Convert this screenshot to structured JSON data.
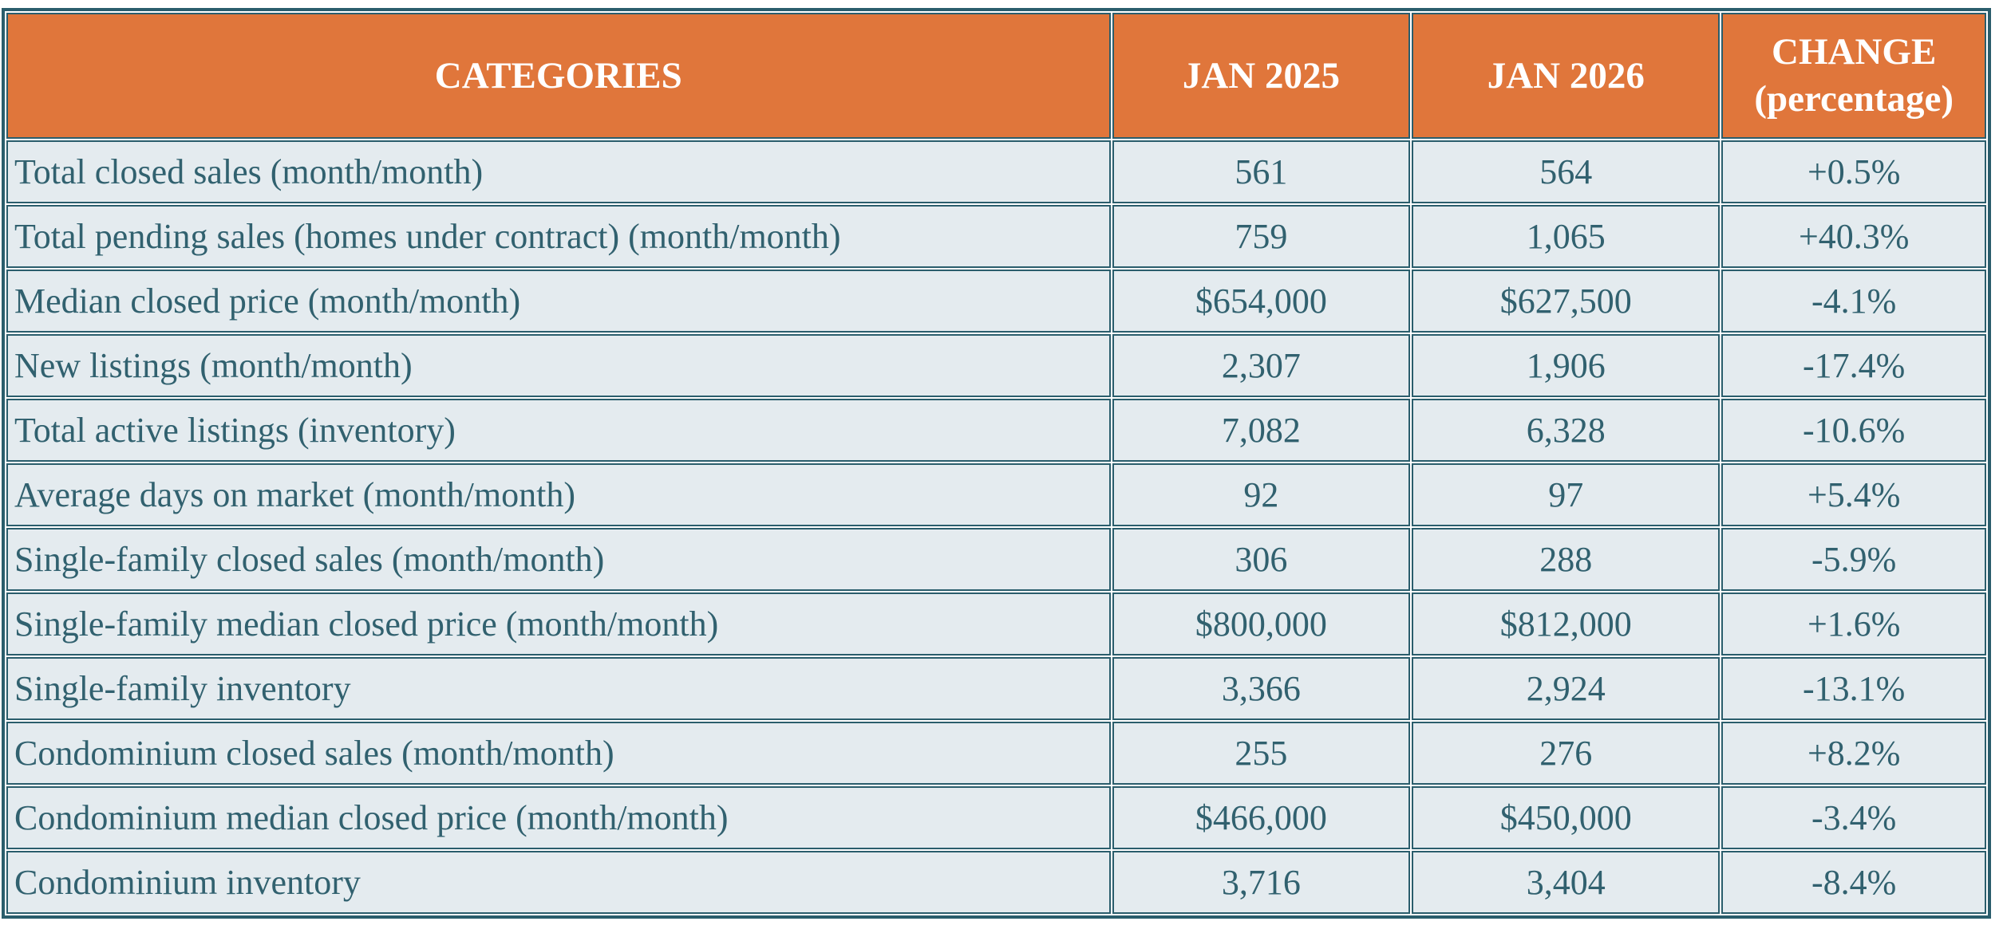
{
  "chart_data": {
    "type": "table",
    "columns": [
      "CATEGORIES",
      "JAN 2025",
      "JAN 2026",
      "CHANGE (percentage)"
    ],
    "rows": [
      [
        "Total closed sales (month/month)",
        "561",
        "564",
        "+0.5%"
      ],
      [
        "Total pending sales (homes under contract) (month/month)",
        "759",
        "1,065",
        "+40.3%"
      ],
      [
        "Median closed price (month/month)",
        "$654,000",
        "$627,500",
        "-4.1%"
      ],
      [
        "New listings (month/month)",
        "2,307",
        "1,906",
        "-17.4%"
      ],
      [
        "Total active listings (inventory)",
        "7,082",
        "6,328",
        "-10.6%"
      ],
      [
        "Average days on market (month/month)",
        "92",
        "97",
        "+5.4%"
      ],
      [
        "Single-family closed sales (month/month)",
        "306",
        "288",
        "-5.9%"
      ],
      [
        "Single-family median closed price (month/month)",
        "$800,000",
        "$812,000",
        "+1.6%"
      ],
      [
        "Single-family inventory",
        "3,366",
        "2,924",
        "-13.1%"
      ],
      [
        "Condominium closed sales (month/month)",
        "255",
        "276",
        "+8.2%"
      ],
      [
        "Condominium median closed price (month/month)",
        "$466,000",
        "$450,000",
        "-3.4%"
      ],
      [
        "Condominium inventory",
        "3,716",
        "3,404",
        "-8.4%"
      ]
    ]
  },
  "colors": {
    "header_bg": "#E0763B",
    "header_text": "#FFFFFF",
    "cell_bg": "#E4EBEF",
    "border": "#2A5D6C",
    "text": "#31616F",
    "page_bg": "#FFFFFF"
  }
}
